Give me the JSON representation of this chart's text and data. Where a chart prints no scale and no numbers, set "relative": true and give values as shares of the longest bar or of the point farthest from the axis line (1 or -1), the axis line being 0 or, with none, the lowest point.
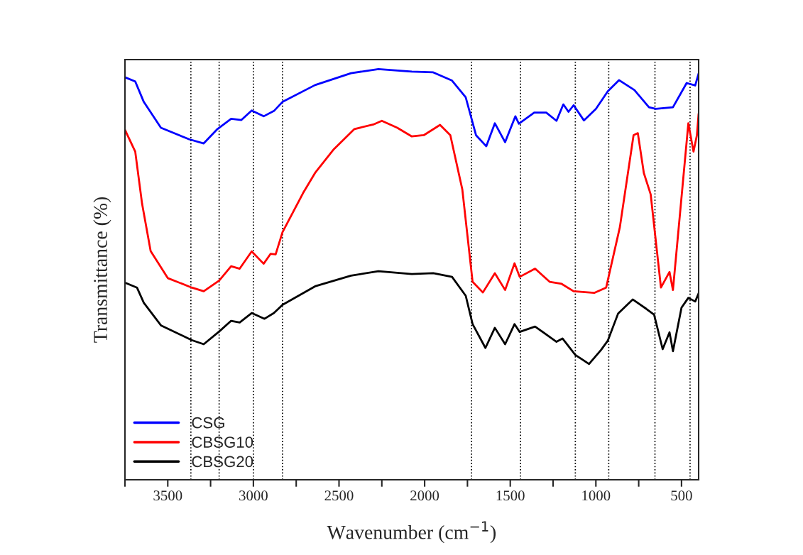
{
  "chart_data": {
    "type": "line",
    "relative": true,
    "xlabel": "Wavenumber (cm$^{−1}$)",
    "ylabel": "Transmittance (%)",
    "xlim": [
      3750,
      400
    ],
    "xticks": [
      {
        "value": 3750,
        "label": null
      },
      3500,
      {
        "value": 3250,
        "label": null
      },
      3000,
      {
        "value": 2750,
        "label": null
      },
      2500,
      {
        "value": 2250,
        "label": null
      },
      2000,
      {
        "value": 1750,
        "label": null
      },
      1500,
      {
        "value": 1250,
        "label": null
      },
      1000,
      {
        "value": 750,
        "label": null
      },
      500
    ],
    "legend": "bottom left",
    "grid": false,
    "marker": "none",
    "line_style": "solid",
    "ref_lines": [
      {
        "axis": "x",
        "value": 3365,
        "line_style": "dotted",
        "color": "#000000"
      },
      {
        "axis": "x",
        "value": 3200,
        "line_style": "dotted",
        "color": "#000000"
      },
      {
        "axis": "x",
        "value": 3000,
        "line_style": "dotted",
        "color": "#000000"
      },
      {
        "axis": "x",
        "value": 2830,
        "line_style": "dotted",
        "color": "#000000"
      },
      {
        "axis": "x",
        "value": 1726,
        "line_style": "dotted",
        "color": "#000000"
      },
      {
        "axis": "x",
        "value": 1440,
        "line_style": "dotted",
        "color": "#000000"
      },
      {
        "axis": "x",
        "value": 1120,
        "line_style": "dotted",
        "color": "#000000"
      },
      {
        "axis": "x",
        "value": 925,
        "line_style": "dotted",
        "color": "#000000"
      },
      {
        "axis": "x",
        "value": 655,
        "line_style": "dotted",
        "color": "#000000"
      },
      {
        "axis": "x",
        "value": 450,
        "line_style": "dotted",
        "color": "#000000"
      }
    ],
    "series": [
      {
        "name": "CSG",
        "color": "#0000ff",
        "x": [
          3750,
          3690,
          3640,
          3540,
          3375,
          3290,
          3210,
          3130,
          3070,
          3010,
          2940,
          2880,
          2830,
          2640,
          2430,
          2270,
          2075,
          1950,
          1840,
          1760,
          1700,
          1640,
          1590,
          1530,
          1470,
          1450,
          1360,
          1290,
          1230,
          1190,
          1160,
          1130,
          1070,
          1000,
          930,
          865,
          775,
          690,
          650,
          550,
          470,
          420,
          400
        ],
        "values": [
          0.98,
          0.97,
          0.92,
          0.857,
          0.829,
          0.819,
          0.854,
          0.879,
          0.876,
          0.899,
          0.885,
          0.898,
          0.92,
          0.961,
          0.99,
          1.0,
          0.994,
          0.992,
          0.972,
          0.931,
          0.839,
          0.812,
          0.868,
          0.822,
          0.885,
          0.867,
          0.894,
          0.894,
          0.874,
          0.914,
          0.896,
          0.912,
          0.875,
          0.903,
          0.946,
          0.973,
          0.949,
          0.907,
          0.903,
          0.907,
          0.966,
          0.96,
          0.989
        ]
      },
      {
        "name": "CBSG10",
        "color": "#ff0000",
        "x": [
          3750,
          3690,
          3650,
          3600,
          3500,
          3360,
          3290,
          3200,
          3130,
          3080,
          3010,
          2940,
          2900,
          2870,
          2830,
          2710,
          2640,
          2530,
          2410,
          2300,
          2250,
          2160,
          2075,
          2005,
          1910,
          1850,
          1780,
          1720,
          1660,
          1590,
          1530,
          1475,
          1445,
          1355,
          1270,
          1200,
          1130,
          1010,
          940,
          860,
          780,
          755,
          720,
          680,
          620,
          570,
          550,
          460,
          430,
          410,
          400
        ],
        "values": [
          0.852,
          0.799,
          0.672,
          0.557,
          0.491,
          0.468,
          0.459,
          0.485,
          0.52,
          0.514,
          0.556,
          0.526,
          0.55,
          0.549,
          0.603,
          0.698,
          0.747,
          0.805,
          0.854,
          0.865,
          0.874,
          0.857,
          0.836,
          0.839,
          0.864,
          0.839,
          0.707,
          0.482,
          0.456,
          0.503,
          0.462,
          0.527,
          0.494,
          0.514,
          0.482,
          0.477,
          0.459,
          0.455,
          0.468,
          0.615,
          0.839,
          0.844,
          0.747,
          0.695,
          0.468,
          0.506,
          0.462,
          0.868,
          0.799,
          0.839,
          0.891
        ]
      },
      {
        "name": "CBSG20",
        "color": "#000000",
        "x": [
          3750,
          3680,
          3640,
          3540,
          3360,
          3290,
          3200,
          3130,
          3080,
          3010,
          2935,
          2880,
          2830,
          2640,
          2430,
          2270,
          2075,
          1950,
          1840,
          1760,
          1720,
          1645,
          1590,
          1530,
          1475,
          1445,
          1355,
          1230,
          1195,
          1120,
          1040,
          970,
          930,
          870,
          785,
          705,
          660,
          610,
          570,
          550,
          500,
          460,
          420,
          400
        ],
        "values": [
          0.48,
          0.468,
          0.431,
          0.376,
          0.34,
          0.33,
          0.361,
          0.387,
          0.383,
          0.406,
          0.392,
          0.406,
          0.426,
          0.471,
          0.497,
          0.508,
          0.501,
          0.503,
          0.494,
          0.448,
          0.379,
          0.321,
          0.37,
          0.33,
          0.379,
          0.36,
          0.373,
          0.336,
          0.344,
          0.304,
          0.282,
          0.316,
          0.339,
          0.405,
          0.439,
          0.416,
          0.402,
          0.318,
          0.359,
          0.313,
          0.419,
          0.443,
          0.434,
          0.454
        ]
      }
    ]
  }
}
